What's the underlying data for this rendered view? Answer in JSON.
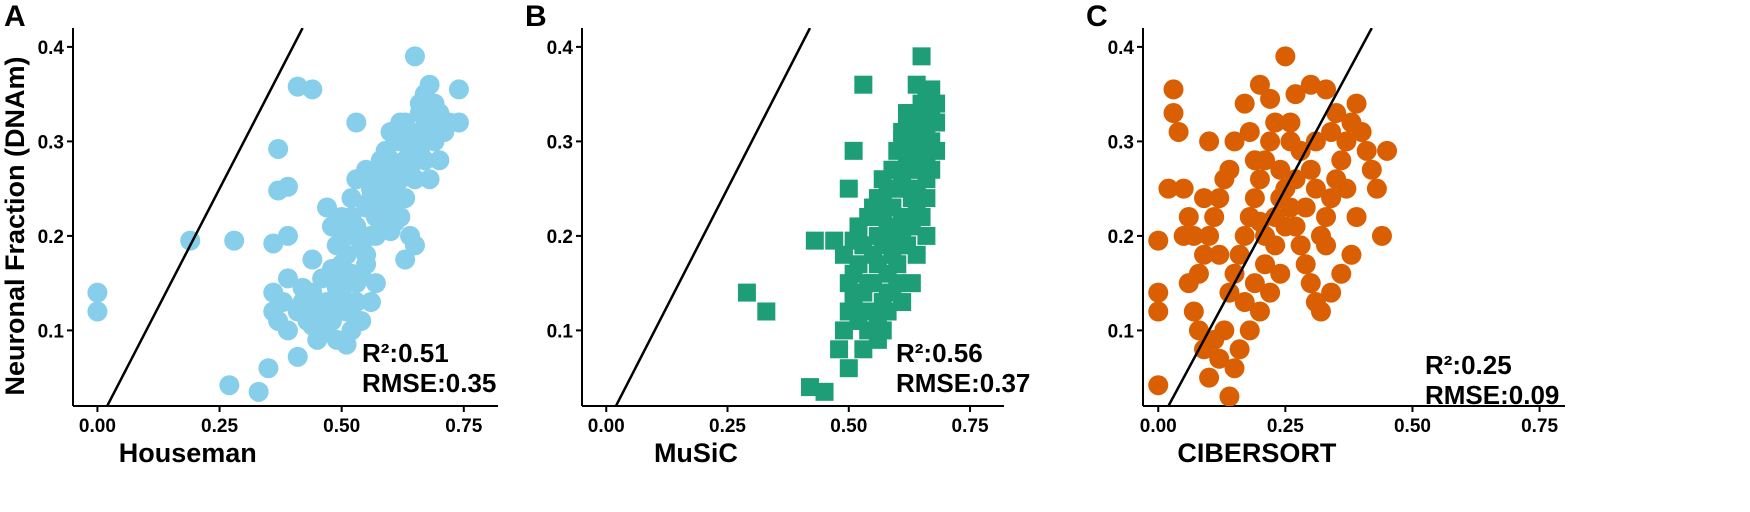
{
  "y_axis_title": "Neuronal Fraction (DNAm)",
  "chart_data": [
    {
      "panel": "A",
      "type": "scatter",
      "xlabel": "Houseman",
      "ylabel": "Neuronal Fraction (DNAm)",
      "xlim": [
        -0.05,
        0.82
      ],
      "ylim": [
        0.02,
        0.42
      ],
      "xticks": [
        "0.00",
        "0.25",
        "0.50",
        "0.75"
      ],
      "yticks": [
        "0.1",
        "0.2",
        "0.3",
        "0.4"
      ],
      "marker": "circle",
      "color": "#87CEEB",
      "r2_text": "R²:0.51",
      "rmse_text": "RMSE:0.35",
      "reference_line": "y = x",
      "points": [
        [
          0.0,
          0.14
        ],
        [
          0.0,
          0.12
        ],
        [
          0.19,
          0.195
        ],
        [
          0.28,
          0.195
        ],
        [
          0.27,
          0.042
        ],
        [
          0.33,
          0.035
        ],
        [
          0.35,
          0.06
        ],
        [
          0.37,
          0.248
        ],
        [
          0.39,
          0.252
        ],
        [
          0.36,
          0.192
        ],
        [
          0.37,
          0.292
        ],
        [
          0.41,
          0.358
        ],
        [
          0.44,
          0.355
        ],
        [
          0.41,
          0.072
        ],
        [
          0.44,
          0.105
        ],
        [
          0.51,
          0.085
        ],
        [
          0.49,
          0.16
        ],
        [
          0.51,
          0.18
        ],
        [
          0.53,
          0.32
        ],
        [
          0.39,
          0.2
        ],
        [
          0.39,
          0.155
        ],
        [
          0.46,
          0.155
        ],
        [
          0.36,
          0.14
        ],
        [
          0.36,
          0.12
        ],
        [
          0.37,
          0.11
        ],
        [
          0.38,
          0.13
        ],
        [
          0.39,
          0.1
        ],
        [
          0.41,
          0.12
        ],
        [
          0.42,
          0.13
        ],
        [
          0.43,
          0.11
        ],
        [
          0.44,
          0.14
        ],
        [
          0.45,
          0.12
        ],
        [
          0.46,
          0.1
        ],
        [
          0.47,
          0.13
        ],
        [
          0.48,
          0.11
        ],
        [
          0.49,
          0.12
        ],
        [
          0.5,
          0.14
        ],
        [
          0.51,
          0.12
        ],
        [
          0.52,
          0.1
        ],
        [
          0.53,
          0.13
        ],
        [
          0.54,
          0.11
        ],
        [
          0.47,
          0.23
        ],
        [
          0.48,
          0.21
        ],
        [
          0.49,
          0.19
        ],
        [
          0.5,
          0.22
        ],
        [
          0.51,
          0.2
        ],
        [
          0.52,
          0.22
        ],
        [
          0.53,
          0.21
        ],
        [
          0.54,
          0.19
        ],
        [
          0.55,
          0.23
        ],
        [
          0.56,
          0.2
        ],
        [
          0.57,
          0.22
        ],
        [
          0.58,
          0.24
        ],
        [
          0.59,
          0.26
        ],
        [
          0.6,
          0.25
        ],
        [
          0.61,
          0.27
        ],
        [
          0.62,
          0.26
        ],
        [
          0.63,
          0.28
        ],
        [
          0.64,
          0.29
        ],
        [
          0.65,
          0.3
        ],
        [
          0.66,
          0.31
        ],
        [
          0.67,
          0.3
        ],
        [
          0.68,
          0.32
        ],
        [
          0.69,
          0.31
        ],
        [
          0.7,
          0.33
        ],
        [
          0.71,
          0.31
        ],
        [
          0.72,
          0.32
        ],
        [
          0.74,
          0.32
        ],
        [
          0.65,
          0.39
        ],
        [
          0.68,
          0.36
        ],
        [
          0.74,
          0.355
        ],
        [
          0.66,
          0.34
        ],
        [
          0.67,
          0.35
        ],
        [
          0.63,
          0.32
        ],
        [
          0.62,
          0.3
        ],
        [
          0.6,
          0.28
        ],
        [
          0.59,
          0.24
        ],
        [
          0.58,
          0.22
        ],
        [
          0.57,
          0.2
        ],
        [
          0.55,
          0.18
        ],
        [
          0.54,
          0.16
        ],
        [
          0.52,
          0.16
        ],
        [
          0.5,
          0.17
        ],
        [
          0.56,
          0.25
        ],
        [
          0.57,
          0.27
        ],
        [
          0.58,
          0.28
        ],
        [
          0.59,
          0.29
        ],
        [
          0.6,
          0.31
        ],
        [
          0.61,
          0.3
        ],
        [
          0.62,
          0.32
        ],
        [
          0.64,
          0.27
        ],
        [
          0.66,
          0.29
        ],
        [
          0.68,
          0.26
        ],
        [
          0.7,
          0.28
        ],
        [
          0.69,
          0.3
        ],
        [
          0.64,
          0.2
        ],
        [
          0.65,
          0.19
        ],
        [
          0.63,
          0.175
        ],
        [
          0.6,
          0.205
        ],
        [
          0.61,
          0.215
        ],
        [
          0.57,
          0.15
        ],
        [
          0.56,
          0.13
        ],
        [
          0.55,
          0.17
        ],
        [
          0.53,
          0.15
        ],
        [
          0.51,
          0.15
        ],
        [
          0.49,
          0.145
        ],
        [
          0.48,
          0.165
        ],
        [
          0.44,
          0.175
        ],
        [
          0.42,
          0.145
        ],
        [
          0.45,
          0.09
        ],
        [
          0.49,
          0.09
        ],
        [
          0.52,
          0.24
        ],
        [
          0.53,
          0.26
        ],
        [
          0.55,
          0.27
        ],
        [
          0.56,
          0.24
        ],
        [
          0.58,
          0.21
        ],
        [
          0.6,
          0.23
        ],
        [
          0.62,
          0.22
        ],
        [
          0.61,
          0.25
        ],
        [
          0.63,
          0.24
        ],
        [
          0.65,
          0.26
        ],
        [
          0.67,
          0.28
        ],
        [
          0.66,
          0.33
        ],
        [
          0.64,
          0.31
        ],
        [
          0.69,
          0.34
        ]
      ]
    },
    {
      "panel": "B",
      "type": "scatter",
      "xlabel": "MuSiC",
      "ylabel": "Neuronal Fraction (DNAm)",
      "xlim": [
        -0.05,
        0.82
      ],
      "ylim": [
        0.02,
        0.42
      ],
      "xticks": [
        "0.00",
        "0.25",
        "0.50",
        "0.75"
      ],
      "yticks": [
        "0.1",
        "0.2",
        "0.3",
        "0.4"
      ],
      "marker": "square",
      "color": "#1E9E77",
      "r2_text": "R²:0.56",
      "rmse_text": "RMSE:0.37",
      "reference_line": "y = x",
      "points": [
        [
          0.29,
          0.14
        ],
        [
          0.33,
          0.12
        ],
        [
          0.42,
          0.04
        ],
        [
          0.45,
          0.035
        ],
        [
          0.43,
          0.195
        ],
        [
          0.47,
          0.195
        ],
        [
          0.49,
          0.18
        ],
        [
          0.51,
          0.29
        ],
        [
          0.5,
          0.25
        ],
        [
          0.53,
          0.36
        ],
        [
          0.65,
          0.39
        ],
        [
          0.51,
          0.195
        ],
        [
          0.52,
          0.2
        ],
        [
          0.48,
          0.08
        ],
        [
          0.5,
          0.06
        ],
        [
          0.49,
          0.1
        ],
        [
          0.5,
          0.12
        ],
        [
          0.51,
          0.13
        ],
        [
          0.52,
          0.11
        ],
        [
          0.5,
          0.15
        ],
        [
          0.51,
          0.16
        ],
        [
          0.52,
          0.17
        ],
        [
          0.53,
          0.14
        ],
        [
          0.54,
          0.15
        ],
        [
          0.55,
          0.12
        ],
        [
          0.54,
          0.1
        ],
        [
          0.56,
          0.09
        ],
        [
          0.53,
          0.08
        ],
        [
          0.55,
          0.18
        ],
        [
          0.56,
          0.2
        ],
        [
          0.57,
          0.22
        ],
        [
          0.58,
          0.21
        ],
        [
          0.55,
          0.23
        ],
        [
          0.56,
          0.24
        ],
        [
          0.57,
          0.19
        ],
        [
          0.58,
          0.16
        ],
        [
          0.59,
          0.14
        ],
        [
          0.58,
          0.12
        ],
        [
          0.6,
          0.15
        ],
        [
          0.57,
          0.13
        ],
        [
          0.59,
          0.23
        ],
        [
          0.6,
          0.25
        ],
        [
          0.61,
          0.26
        ],
        [
          0.6,
          0.27
        ],
        [
          0.62,
          0.28
        ],
        [
          0.61,
          0.3
        ],
        [
          0.62,
          0.32
        ],
        [
          0.63,
          0.29
        ],
        [
          0.64,
          0.3
        ],
        [
          0.63,
          0.31
        ],
        [
          0.64,
          0.33
        ],
        [
          0.65,
          0.34
        ],
        [
          0.66,
          0.35
        ],
        [
          0.65,
          0.32
        ],
        [
          0.66,
          0.31
        ],
        [
          0.67,
          0.33
        ],
        [
          0.68,
          0.32
        ],
        [
          0.67,
          0.3
        ],
        [
          0.66,
          0.28
        ],
        [
          0.65,
          0.27
        ],
        [
          0.64,
          0.25
        ],
        [
          0.63,
          0.24
        ],
        [
          0.62,
          0.22
        ],
        [
          0.61,
          0.2
        ],
        [
          0.6,
          0.19
        ],
        [
          0.59,
          0.18
        ],
        [
          0.62,
          0.19
        ],
        [
          0.63,
          0.21
        ],
        [
          0.64,
          0.23
        ],
        [
          0.65,
          0.22
        ],
        [
          0.66,
          0.24
        ],
        [
          0.66,
          0.26
        ],
        [
          0.67,
          0.27
        ],
        [
          0.68,
          0.29
        ],
        [
          0.64,
          0.36
        ],
        [
          0.67,
          0.355
        ],
        [
          0.68,
          0.34
        ],
        [
          0.58,
          0.25
        ],
        [
          0.57,
          0.26
        ],
        [
          0.59,
          0.27
        ],
        [
          0.6,
          0.29
        ],
        [
          0.61,
          0.31
        ],
        [
          0.62,
          0.33
        ],
        [
          0.56,
          0.17
        ],
        [
          0.55,
          0.15
        ],
        [
          0.53,
          0.19
        ],
        [
          0.52,
          0.21
        ],
        [
          0.54,
          0.22
        ],
        [
          0.56,
          0.11
        ],
        [
          0.53,
          0.12
        ],
        [
          0.51,
          0.14
        ],
        [
          0.57,
          0.1
        ],
        [
          0.58,
          0.14
        ],
        [
          0.6,
          0.17
        ],
        [
          0.61,
          0.22
        ],
        [
          0.62,
          0.25
        ],
        [
          0.63,
          0.27
        ],
        [
          0.65,
          0.3
        ],
        [
          0.66,
          0.2
        ],
        [
          0.64,
          0.18
        ],
        [
          0.63,
          0.15
        ],
        [
          0.61,
          0.13
        ],
        [
          0.6,
          0.21
        ],
        [
          0.59,
          0.2
        ],
        [
          0.58,
          0.23
        ],
        [
          0.57,
          0.24
        ],
        [
          0.64,
          0.28
        ],
        [
          0.65,
          0.29
        ],
        [
          0.63,
          0.33
        ],
        [
          0.66,
          0.34
        ]
      ]
    },
    {
      "panel": "C",
      "type": "scatter",
      "xlabel": "CIBERSORT",
      "ylabel": "Neuronal Fraction (DNAm)",
      "xlim": [
        -0.03,
        0.8
      ],
      "ylim": [
        0.02,
        0.42
      ],
      "xticks": [
        "0.00",
        "0.25",
        "0.50",
        "0.75"
      ],
      "yticks": [
        "0.1",
        "0.2",
        "0.3",
        "0.4"
      ],
      "marker": "circle",
      "color": "#D95F02",
      "r2_text": "R²:0.25",
      "rmse_text": "RMSE:0.09",
      "reference_line": "y = x",
      "points": [
        [
          0.0,
          0.042
        ],
        [
          0.0,
          0.12
        ],
        [
          0.0,
          0.14
        ],
        [
          0.0,
          0.195
        ],
        [
          0.02,
          0.25
        ],
        [
          0.03,
          0.355
        ],
        [
          0.03,
          0.33
        ],
        [
          0.04,
          0.31
        ],
        [
          0.05,
          0.25
        ],
        [
          0.05,
          0.2
        ],
        [
          0.06,
          0.15
        ],
        [
          0.07,
          0.12
        ],
        [
          0.08,
          0.1
        ],
        [
          0.09,
          0.08
        ],
        [
          0.1,
          0.05
        ],
        [
          0.12,
          0.07
        ],
        [
          0.14,
          0.03
        ],
        [
          0.15,
          0.06
        ],
        [
          0.11,
          0.09
        ],
        [
          0.13,
          0.1
        ],
        [
          0.08,
          0.16
        ],
        [
          0.09,
          0.18
        ],
        [
          0.1,
          0.2
        ],
        [
          0.11,
          0.22
        ],
        [
          0.12,
          0.24
        ],
        [
          0.13,
          0.26
        ],
        [
          0.1,
          0.3
        ],
        [
          0.15,
          0.3
        ],
        [
          0.17,
          0.34
        ],
        [
          0.2,
          0.36
        ],
        [
          0.22,
          0.345
        ],
        [
          0.25,
          0.39
        ],
        [
          0.27,
          0.35
        ],
        [
          0.3,
          0.36
        ],
        [
          0.33,
          0.355
        ],
        [
          0.14,
          0.14
        ],
        [
          0.15,
          0.16
        ],
        [
          0.16,
          0.18
        ],
        [
          0.17,
          0.2
        ],
        [
          0.18,
          0.22
        ],
        [
          0.19,
          0.24
        ],
        [
          0.2,
          0.26
        ],
        [
          0.21,
          0.28
        ],
        [
          0.22,
          0.3
        ],
        [
          0.23,
          0.32
        ],
        [
          0.24,
          0.27
        ],
        [
          0.25,
          0.25
        ],
        [
          0.26,
          0.23
        ],
        [
          0.27,
          0.21
        ],
        [
          0.28,
          0.19
        ],
        [
          0.29,
          0.17
        ],
        [
          0.3,
          0.15
        ],
        [
          0.31,
          0.13
        ],
        [
          0.32,
          0.2
        ],
        [
          0.33,
          0.22
        ],
        [
          0.34,
          0.24
        ],
        [
          0.35,
          0.26
        ],
        [
          0.36,
          0.28
        ],
        [
          0.37,
          0.3
        ],
        [
          0.38,
          0.32
        ],
        [
          0.39,
          0.34
        ],
        [
          0.4,
          0.31
        ],
        [
          0.41,
          0.29
        ],
        [
          0.42,
          0.27
        ],
        [
          0.43,
          0.25
        ],
        [
          0.44,
          0.2
        ],
        [
          0.45,
          0.29
        ],
        [
          0.38,
          0.18
        ],
        [
          0.36,
          0.16
        ],
        [
          0.34,
          0.14
        ],
        [
          0.32,
          0.12
        ],
        [
          0.18,
          0.1
        ],
        [
          0.2,
          0.12
        ],
        [
          0.22,
          0.14
        ],
        [
          0.24,
          0.16
        ],
        [
          0.16,
          0.08
        ],
        [
          0.19,
          0.28
        ],
        [
          0.21,
          0.2
        ],
        [
          0.23,
          0.22
        ],
        [
          0.26,
          0.3
        ],
        [
          0.28,
          0.29
        ],
        [
          0.3,
          0.27
        ],
        [
          0.31,
          0.25
        ],
        [
          0.29,
          0.23
        ],
        [
          0.27,
          0.26
        ],
        [
          0.25,
          0.21
        ],
        [
          0.23,
          0.19
        ],
        [
          0.21,
          0.17
        ],
        [
          0.19,
          0.15
        ],
        [
          0.17,
          0.13
        ],
        [
          0.12,
          0.18
        ],
        [
          0.07,
          0.2
        ],
        [
          0.06,
          0.22
        ],
        [
          0.09,
          0.24
        ],
        [
          0.14,
          0.27
        ],
        [
          0.18,
          0.31
        ],
        [
          0.26,
          0.32
        ],
        [
          0.34,
          0.31
        ],
        [
          0.37,
          0.25
        ],
        [
          0.39,
          0.22
        ],
        [
          0.33,
          0.19
        ],
        [
          0.35,
          0.33
        ],
        [
          0.31,
          0.3
        ],
        [
          0.24,
          0.24
        ],
        [
          0.2,
          0.215
        ]
      ]
    }
  ]
}
